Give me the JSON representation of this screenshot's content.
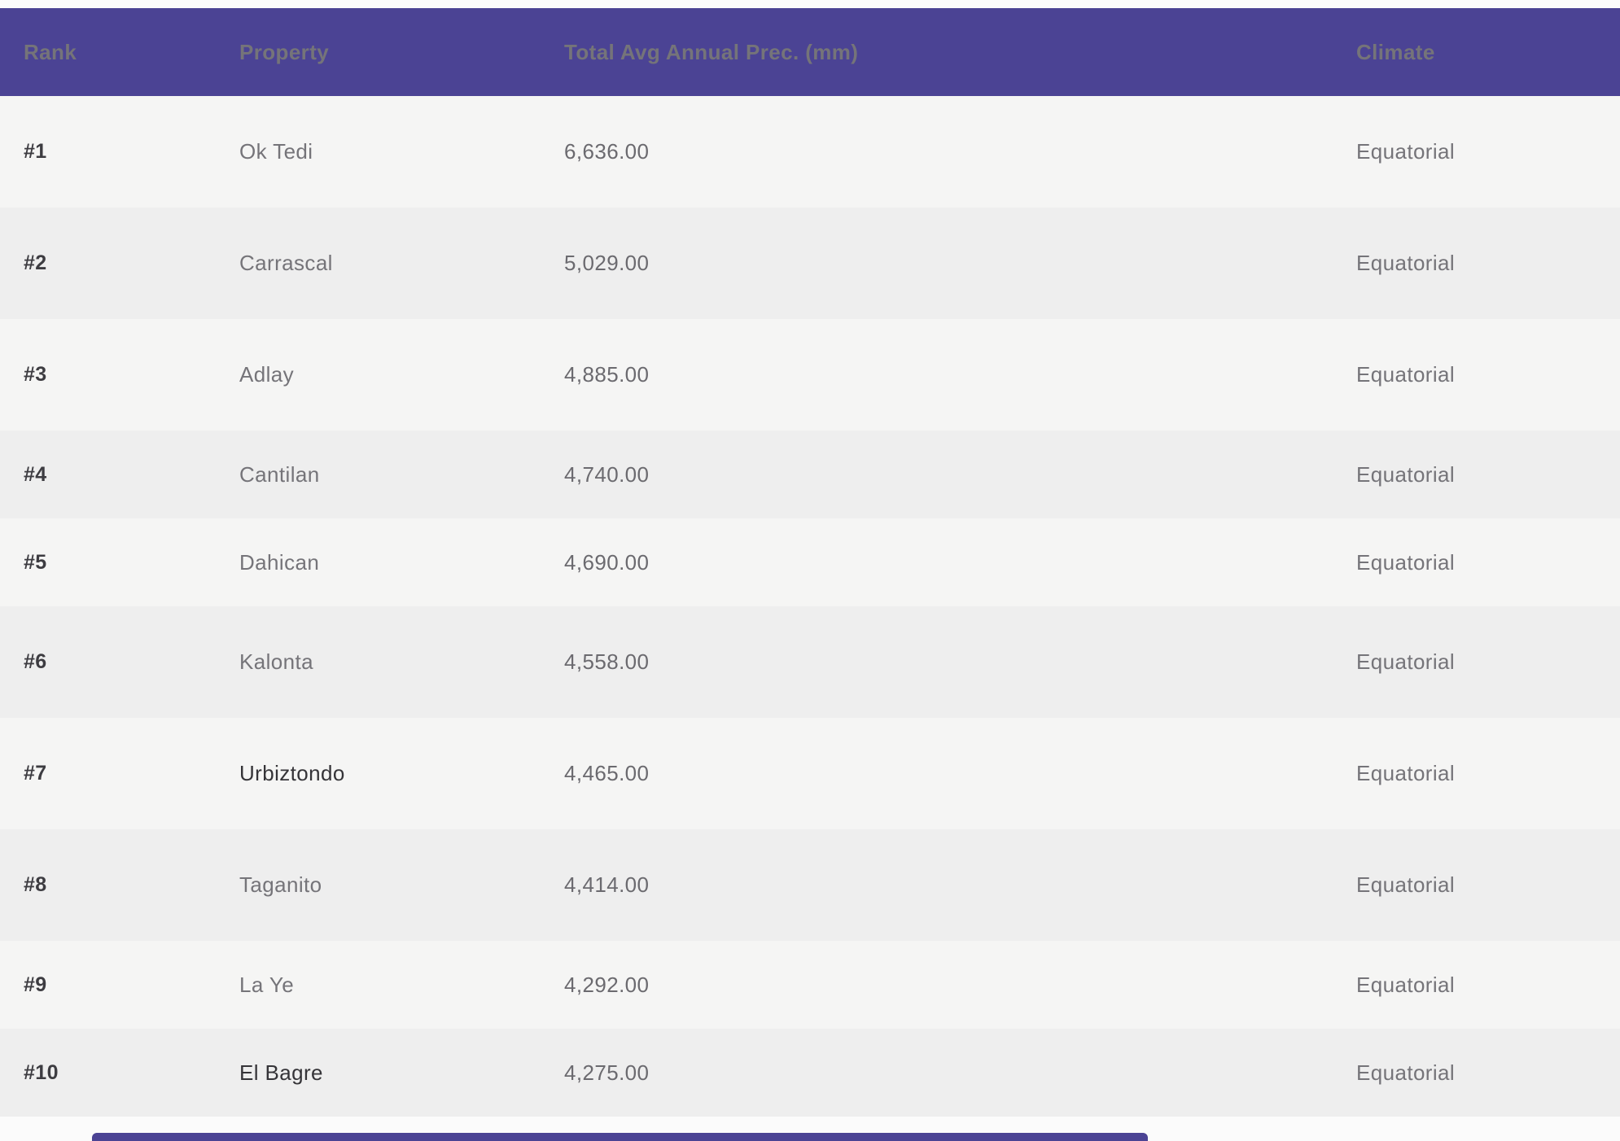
{
  "table": {
    "columns": [
      {
        "label": "Rank"
      },
      {
        "label": "Property"
      },
      {
        "label": "Total Avg Annual Prec. (mm)"
      },
      {
        "label": "Climate"
      }
    ],
    "rows": [
      {
        "rank": "#1",
        "property": "Ok Tedi",
        "precipitation": "6,636.00",
        "climate": "Equatorial",
        "highlighted": false
      },
      {
        "rank": "#2",
        "property": "Carrascal",
        "precipitation": "5,029.00",
        "climate": "Equatorial",
        "highlighted": false
      },
      {
        "rank": "#3",
        "property": "Adlay",
        "precipitation": "4,885.00",
        "climate": "Equatorial",
        "highlighted": false
      },
      {
        "rank": "#4",
        "property": "Cantilan",
        "precipitation": "4,740.00",
        "climate": "Equatorial",
        "highlighted": false
      },
      {
        "rank": "#5",
        "property": "Dahican",
        "precipitation": "4,690.00",
        "climate": "Equatorial",
        "highlighted": false
      },
      {
        "rank": "#6",
        "property": "Kalonta",
        "precipitation": "4,558.00",
        "climate": "Equatorial",
        "highlighted": false
      },
      {
        "rank": "#7",
        "property": "Urbiztondo",
        "precipitation": "4,465.00",
        "climate": "Equatorial",
        "highlighted": true
      },
      {
        "rank": "#8",
        "property": "Taganito",
        "precipitation": "4,414.00",
        "climate": "Equatorial",
        "highlighted": false
      },
      {
        "rank": "#9",
        "property": "La Ye",
        "precipitation": "4,292.00",
        "climate": "Equatorial",
        "highlighted": false
      },
      {
        "rank": "#10",
        "property": "El Bagre",
        "precipitation": "4,275.00",
        "climate": "Equatorial",
        "highlighted": true
      }
    ]
  },
  "colors": {
    "header_bg": "#4b4394",
    "row_odd": "#f5f5f4",
    "row_even": "#eeeeee",
    "page_bg": "#fbfbfb",
    "header_text": "#ffffff"
  }
}
